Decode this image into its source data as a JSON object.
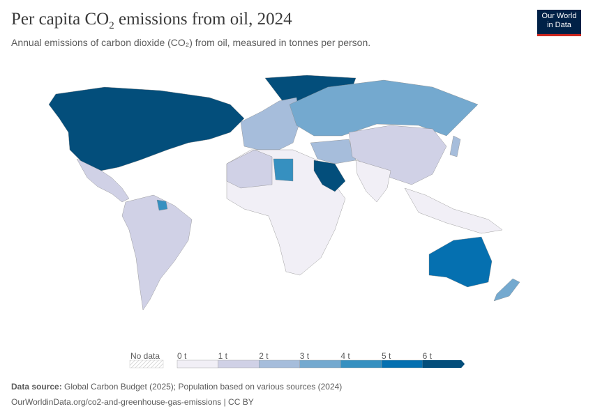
{
  "header": {
    "title_pre": "Per capita CO",
    "title_sub": "2",
    "title_post": " emissions from oil, 2024",
    "subtitle": "Annual emissions of carbon dioxide (CO₂) from oil, measured in tonnes per person.",
    "logo_line1": "Our World",
    "logo_line2": "in Data"
  },
  "legend": {
    "no_data": "No data",
    "ticks": [
      "0 t",
      "1 t",
      "2 t",
      "3 t",
      "4 t",
      "5 t",
      "6 t"
    ],
    "colors": [
      "#f1eff6",
      "#d0d1e6",
      "#a6bddb",
      "#74a9cf",
      "#3690c0",
      "#0570b0",
      "#034e7b"
    ]
  },
  "map_data": {
    "type": "choropleth",
    "unit": "tonnes per person",
    "year": 2024,
    "regions": [
      {
        "name": "North America (USA, Canada)",
        "bin": "6+ t"
      },
      {
        "name": "Greenland",
        "bin": "6+ t"
      },
      {
        "name": "Saudi Arabia",
        "bin": "6+ t"
      },
      {
        "name": "Australia",
        "bin": "5-6 t"
      },
      {
        "name": "Libya",
        "bin": "4-5 t"
      },
      {
        "name": "Suriname",
        "bin": "4-5 t"
      },
      {
        "name": "Russia",
        "bin": "3-4 t"
      },
      {
        "name": "Europe",
        "bin": "2-3 t"
      },
      {
        "name": "Iran",
        "bin": "3-4 t"
      },
      {
        "name": "New Zealand",
        "bin": "3-4 t"
      },
      {
        "name": "China",
        "bin": "1-2 t"
      },
      {
        "name": "South America",
        "bin": "1-2 t"
      },
      {
        "name": "Mexico",
        "bin": "1-2 t"
      },
      {
        "name": "Africa",
        "bin": "0-1 t"
      },
      {
        "name": "India",
        "bin": "0-1 t"
      }
    ]
  },
  "footer": {
    "source_label": "Data source:",
    "source": " Global Carbon Budget (2025); Population based on various sources (2024)",
    "url": "OurWorldinData.org/co2-and-greenhouse-gas-emissions | CC BY"
  }
}
